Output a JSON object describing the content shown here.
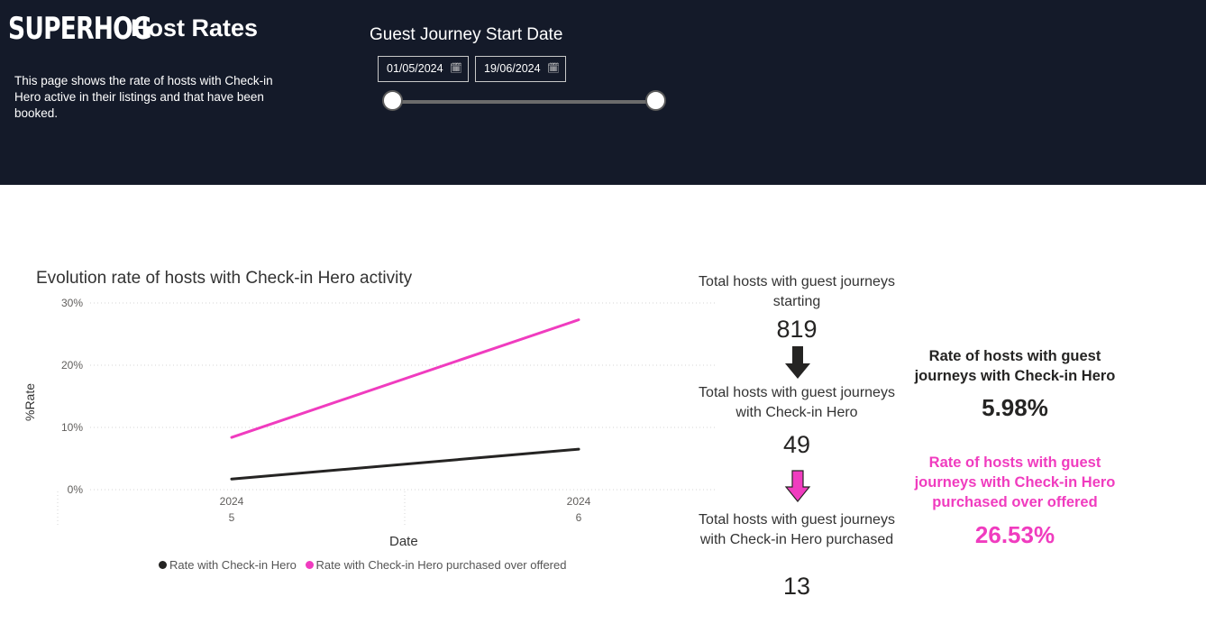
{
  "header": {
    "logo_text": "SUPERHOG",
    "title": "Host Rates",
    "description": "This page shows the rate of hosts with Check-in Hero active in their listings and that have been booked."
  },
  "date_slicer": {
    "title": "Guest Journey Start Date",
    "start_date": "01/05/2024",
    "end_date": "19/06/2024",
    "calendar_icon": "calendar-icon"
  },
  "chart_data": {
    "type": "line",
    "title": "Evolution rate of hosts with Check-in Hero activity",
    "xlabel": "Date",
    "ylabel": "%Rate",
    "ylim": [
      0,
      0.3
    ],
    "y_ticks": [
      "30%",
      "20%",
      "10%",
      "0%"
    ],
    "categories": [
      {
        "year": "2024",
        "month": "5"
      },
      {
        "year": "2024",
        "month": "6"
      }
    ],
    "series": [
      {
        "name": "Rate with Check-in Hero",
        "color": "#252423",
        "values": [
          0.017,
          0.065
        ]
      },
      {
        "name": "Rate with Check-in Hero purchased over offered",
        "color": "#f03cbf",
        "values": [
          0.084,
          0.273
        ]
      }
    ],
    "grid": true,
    "legend_position": "bottom"
  },
  "kpis": {
    "total_hosts_label": "Total hosts with guest journeys starting",
    "total_hosts_value": "819",
    "with_checkin_label": "Total hosts with guest journeys with Check-in Hero",
    "with_checkin_value": "49",
    "purchased_label": "Total hosts with guest journeys with Check-in Hero purchased",
    "purchased_value": "13"
  },
  "rates": {
    "checkin_rate_label": "Rate of hosts with guest journeys with Check-in Hero",
    "checkin_rate_value": "5.98%",
    "purchased_rate_label": "Rate of hosts with guest journeys with Check-in Hero purchased over offered",
    "purchased_rate_value": "26.53%"
  },
  "colors": {
    "header_bg": "#141a29",
    "accent_pink": "#f03cbf",
    "dark": "#252423"
  }
}
